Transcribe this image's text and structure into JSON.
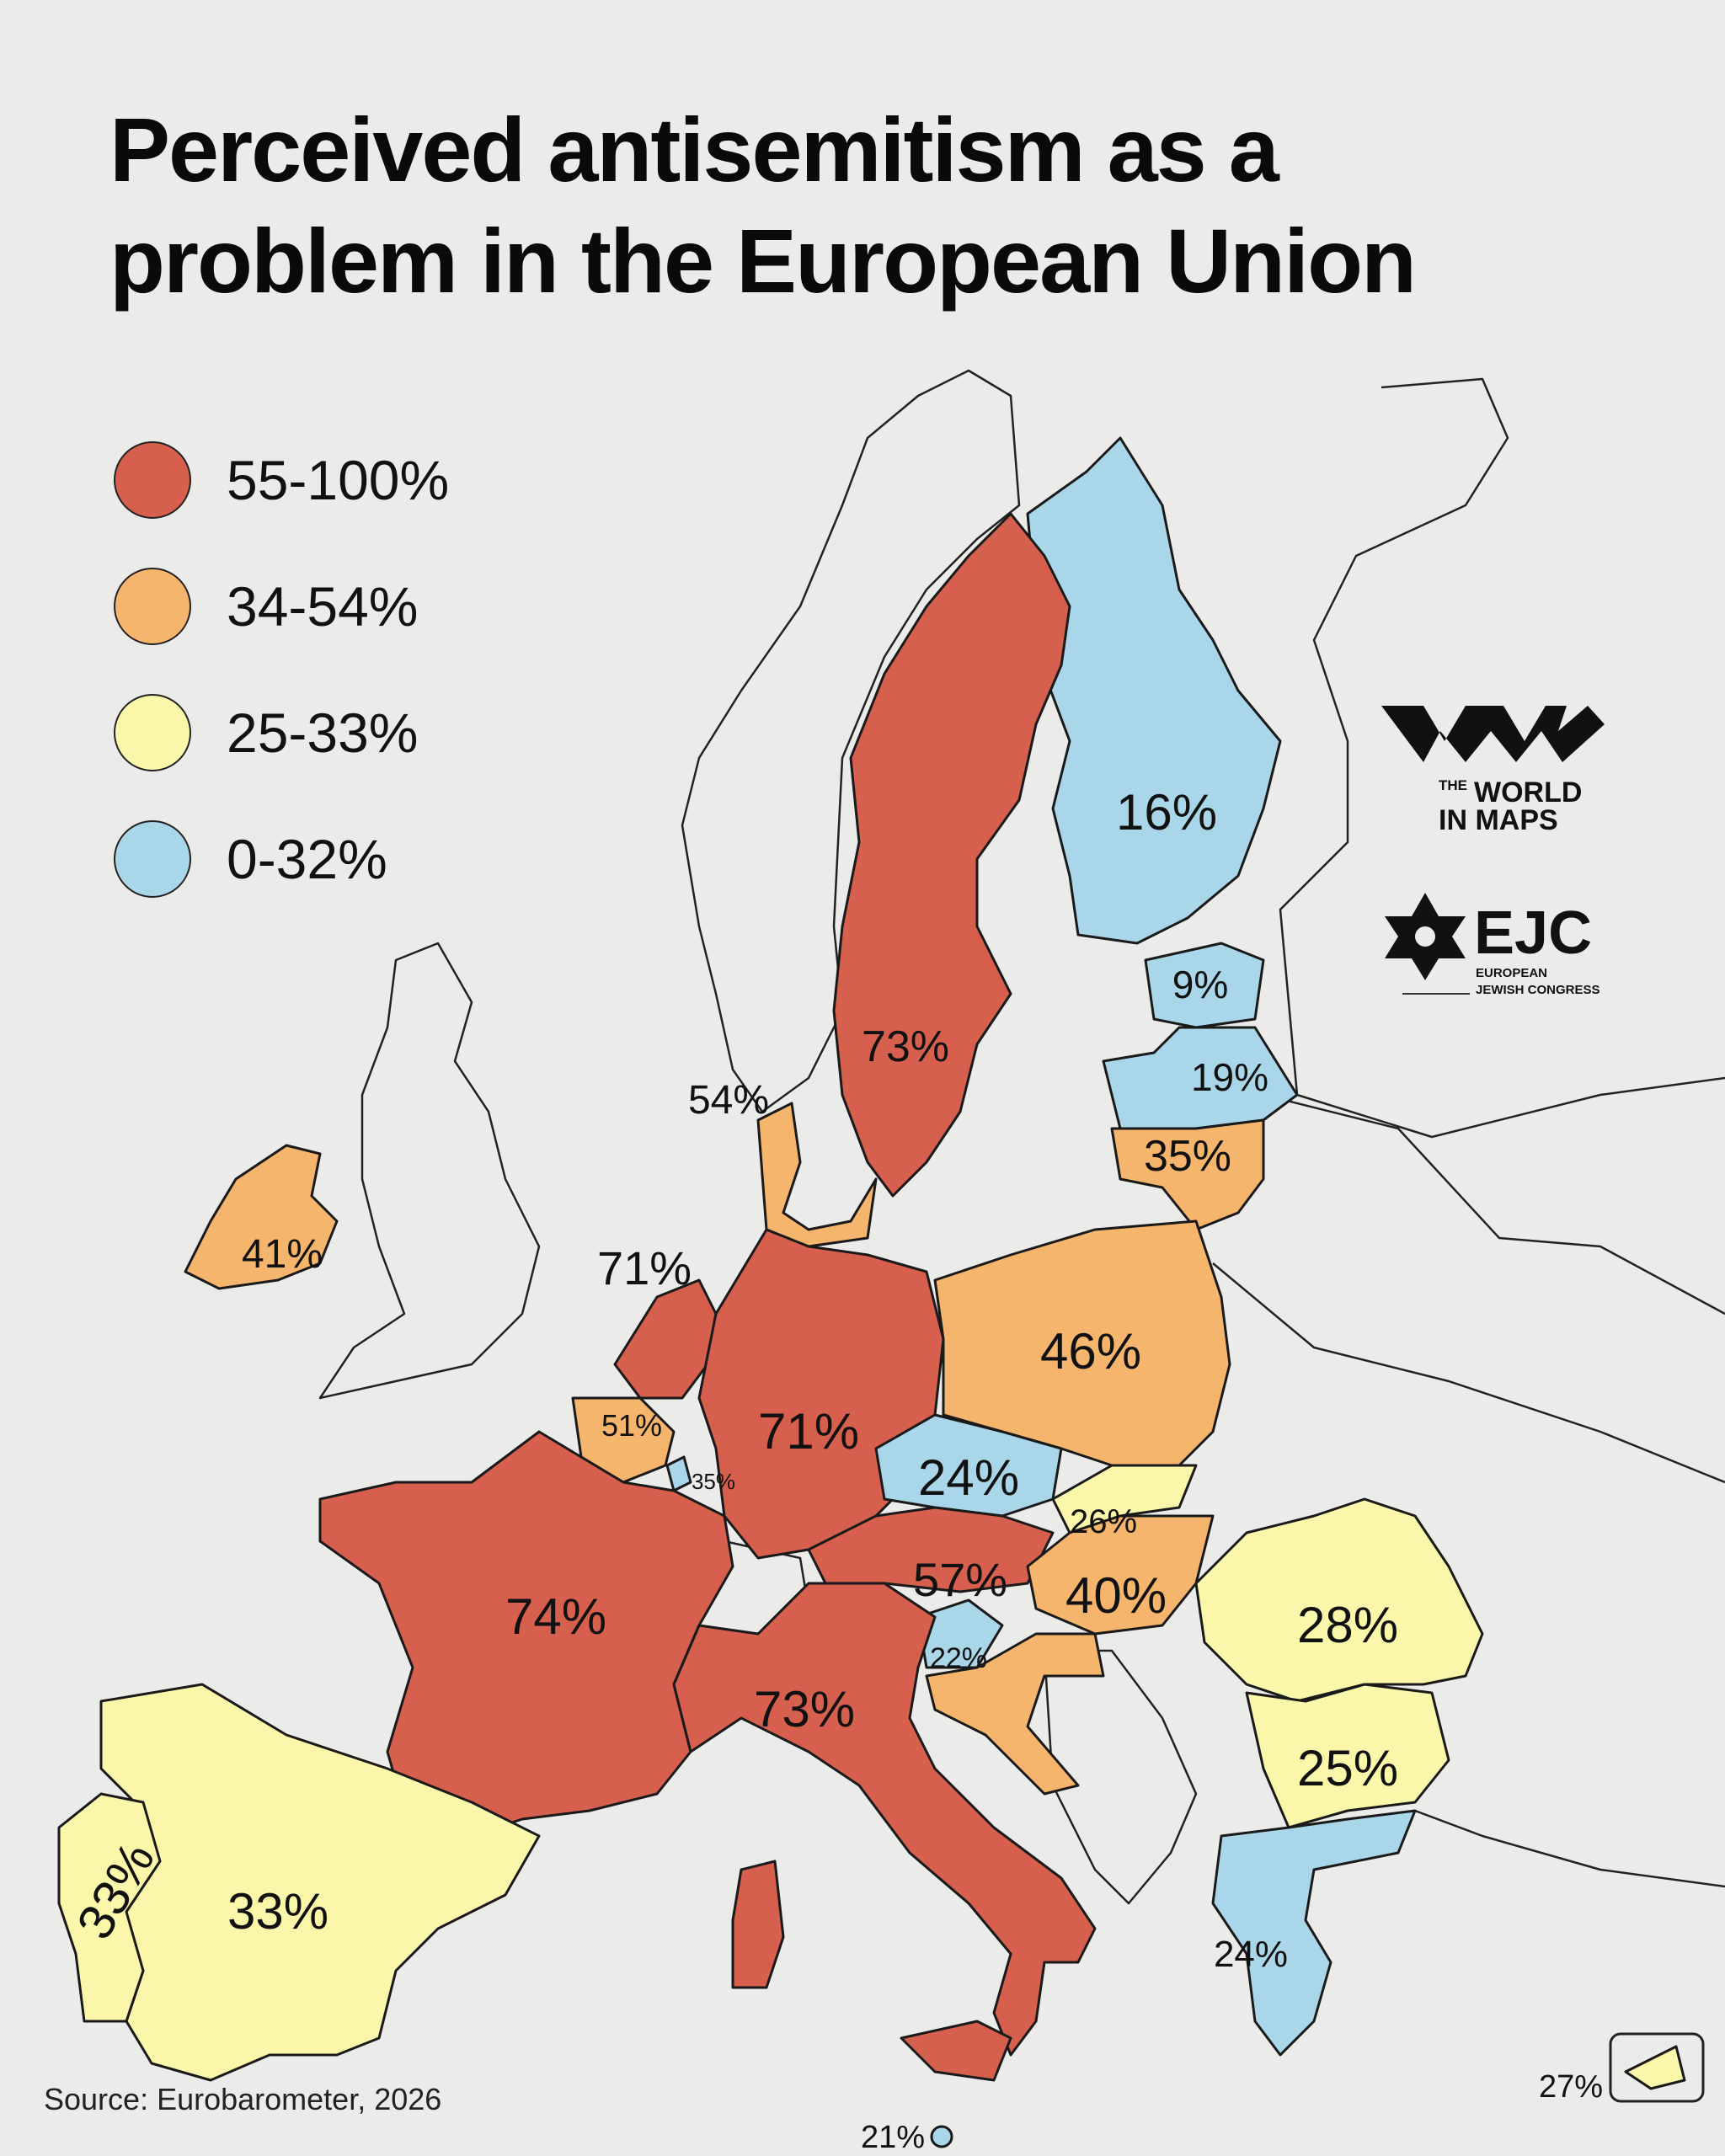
{
  "title": {
    "line1": "Perceived antisemitism as a",
    "line2": "problem in the European Union"
  },
  "legend": [
    {
      "label": "55-100%",
      "color": "#d65f4e"
    },
    {
      "label": "34-54%",
      "color": "#f5b56c"
    },
    {
      "label": "25-33%",
      "color": "#fbf7aa"
    },
    {
      "label": "0-32%",
      "color": "#a9d6e8"
    }
  ],
  "colors": {
    "red": "#d65f4e",
    "orange": "#f5b56c",
    "yellow": "#fbf7aa",
    "blue": "#a9d6e8",
    "background": "#ebebea"
  },
  "labels": {
    "finland": "16%",
    "sweden": "73%",
    "estonia": "9%",
    "latvia": "19%",
    "lithuania": "35%",
    "denmark": "54%",
    "ireland": "41%",
    "netherlands": "71%",
    "belgium": "51%",
    "luxembourg": "35%",
    "germany": "71%",
    "poland": "46%",
    "czechia": "24%",
    "slovakia": "26%",
    "austria": "57%",
    "hungary": "40%",
    "slovenia": "22%",
    "france": "74%",
    "italy": "73%",
    "romania": "28%",
    "bulgaria": "25%",
    "greece": "24%",
    "spain": "33%",
    "portugal": "33%",
    "malta": "21%",
    "cyprus": "27%"
  },
  "logos": {
    "world_in_maps_small": "THE",
    "world_in_maps_line1": "WORLD",
    "world_in_maps_line2": "IN MAPS",
    "ejc_mark": "EJC",
    "ejc_line1": "EUROPEAN",
    "ejc_line2": "JEWISH CONGRESS"
  },
  "source": "Source: Eurobarometer, 2026"
}
